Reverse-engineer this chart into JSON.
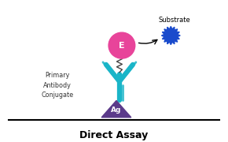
{
  "title": "Direct Assay",
  "title_fontsize": 9,
  "bg_color": "#ffffff",
  "antibody_color": "#1ab5c8",
  "antigen_color": "#5b3a8a",
  "enzyme_color": "#e8449a",
  "substrate_color": "#1a4bcc",
  "enzyme_label": "E",
  "antigen_label": "Ag",
  "substrate_label": "Substrate",
  "primary_label": "Primary\nAntibody\nConjugate",
  "linker_color": "#444444",
  "line_color": "#111111"
}
